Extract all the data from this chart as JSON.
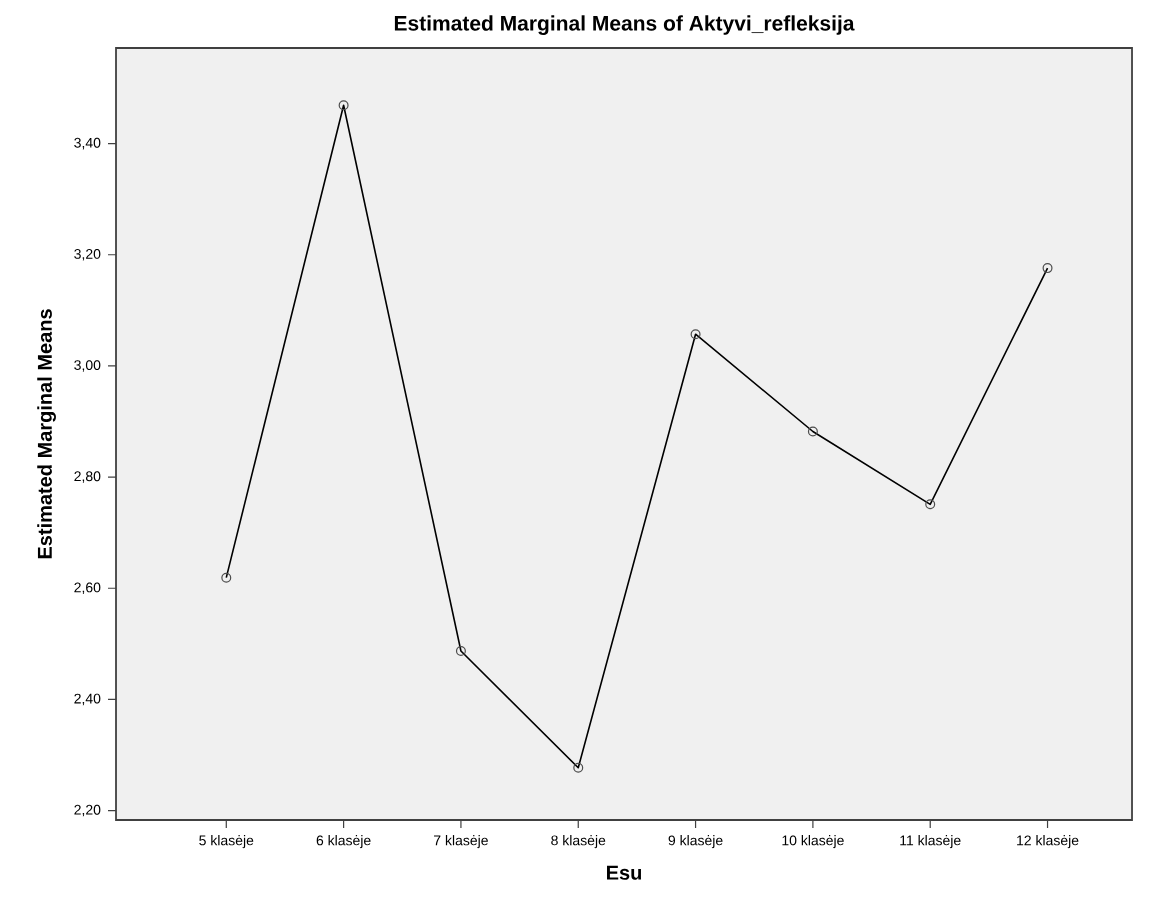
{
  "chart_data": {
    "type": "line",
    "title": "Estimated Marginal Means of Aktyvi_refleksija",
    "xlabel": "Esu",
    "ylabel": "Estimated Marginal Means",
    "categories": [
      "5 klasėje",
      "6 klasėje",
      "7 klasėje",
      "8 klasėje",
      "9 klasėje",
      "10 klasėje",
      "11 klasėje",
      "12 klasėje"
    ],
    "values": [
      2.619,
      3.469,
      2.487,
      2.277,
      3.057,
      2.882,
      2.751,
      3.176
    ],
    "color": "#000000",
    "marker": "circle",
    "line_style": "solid",
    "ylim": [
      2.183,
      3.572
    ],
    "yticks": [
      {
        "value": 2.2,
        "label": "2,20"
      },
      {
        "value": 2.4,
        "label": "2,40"
      },
      {
        "value": 2.6,
        "label": "2,60"
      },
      {
        "value": 2.8,
        "label": "2,80"
      },
      {
        "value": 3.0,
        "label": "3,00"
      },
      {
        "value": 3.2,
        "label": "3,20"
      },
      {
        "value": 3.4,
        "label": "3,40"
      }
    ]
  }
}
